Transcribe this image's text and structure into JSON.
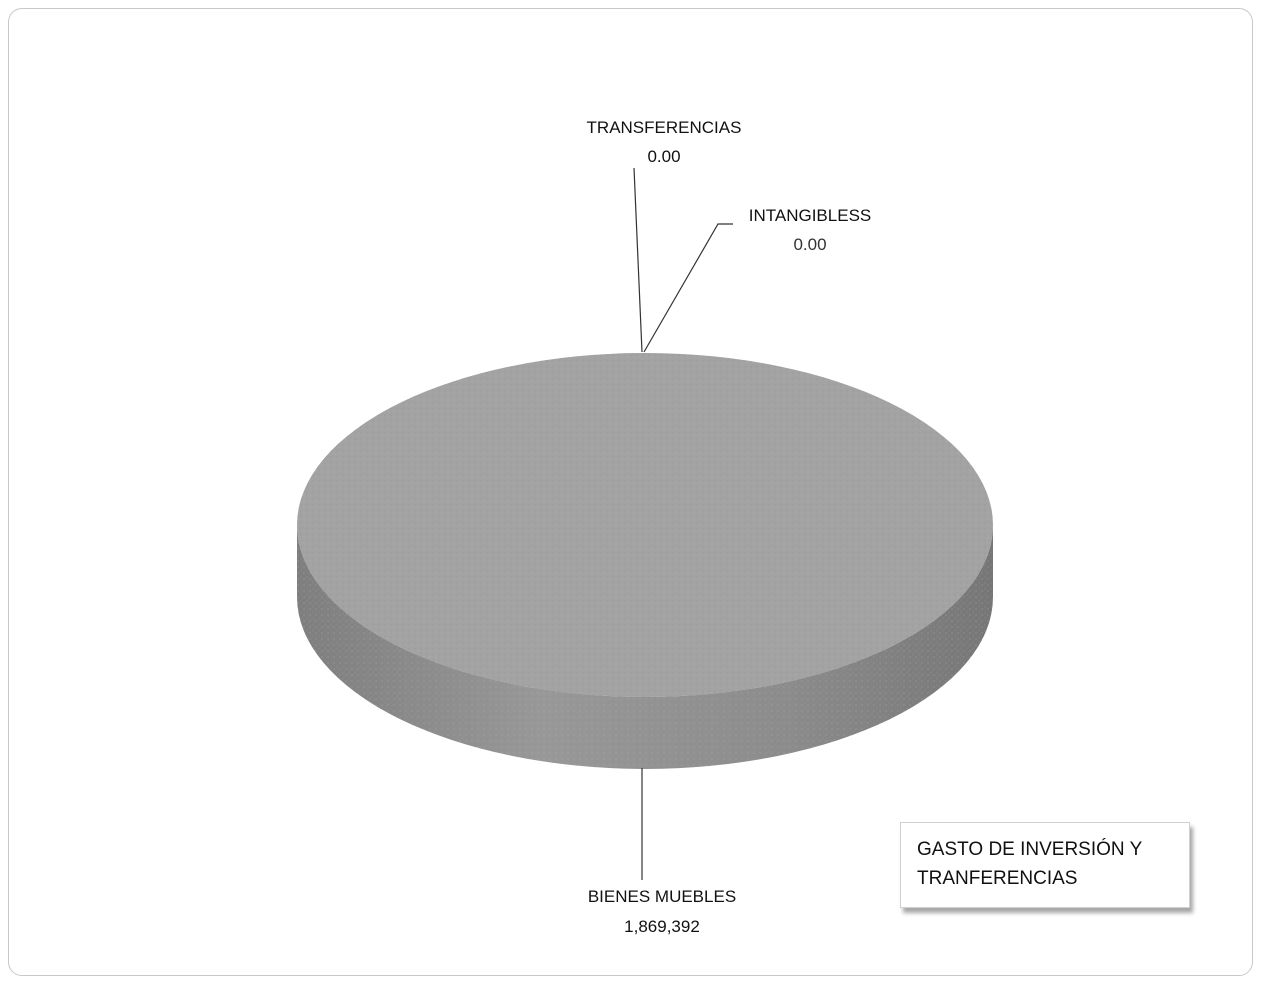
{
  "chart_data": {
    "type": "pie",
    "title": "GASTO DE INVERSIÓN Y TRANFERENCIAS",
    "slices": [
      {
        "name": "TRANSFERENCIAS",
        "value": 0.0,
        "value_label": "0.00"
      },
      {
        "name": "INTANGIBLESS",
        "value": 0.0,
        "value_label": "0.00"
      },
      {
        "name": "BIENES MUEBLES",
        "value": 1869392,
        "value_label": "1,869,392"
      }
    ],
    "style": "3d",
    "colors": {
      "top": "#a3a3a3",
      "side": "#8a8a8a"
    },
    "legend": "none"
  }
}
